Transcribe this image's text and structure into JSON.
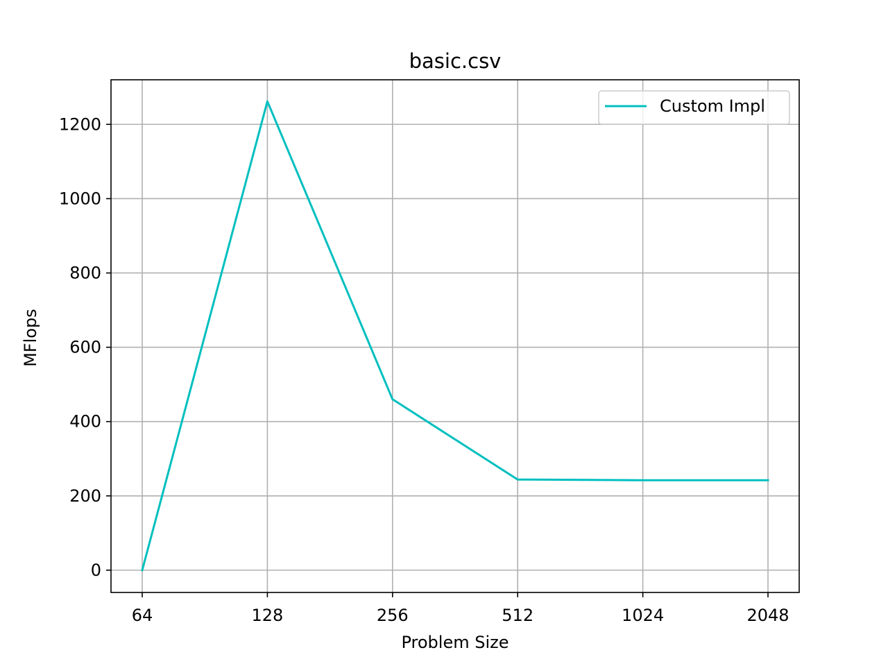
{
  "chart_data": {
    "type": "line",
    "title": "basic.csv",
    "xlabel": "Problem Size",
    "ylabel": "MFlops",
    "categories": [
      "64",
      "128",
      "256",
      "512",
      "1024",
      "2048"
    ],
    "series": [
      {
        "name": "Custom Impl",
        "color": "#00bfbf",
        "values": [
          0,
          1262,
          460,
          244,
          242,
          242
        ]
      }
    ],
    "yticks": [
      0,
      200,
      400,
      600,
      800,
      1000,
      1200
    ],
    "ylim": [
      -60,
      1320
    ],
    "grid": true,
    "legend_position": "top-right",
    "grid_color": "#b0b0b0"
  }
}
